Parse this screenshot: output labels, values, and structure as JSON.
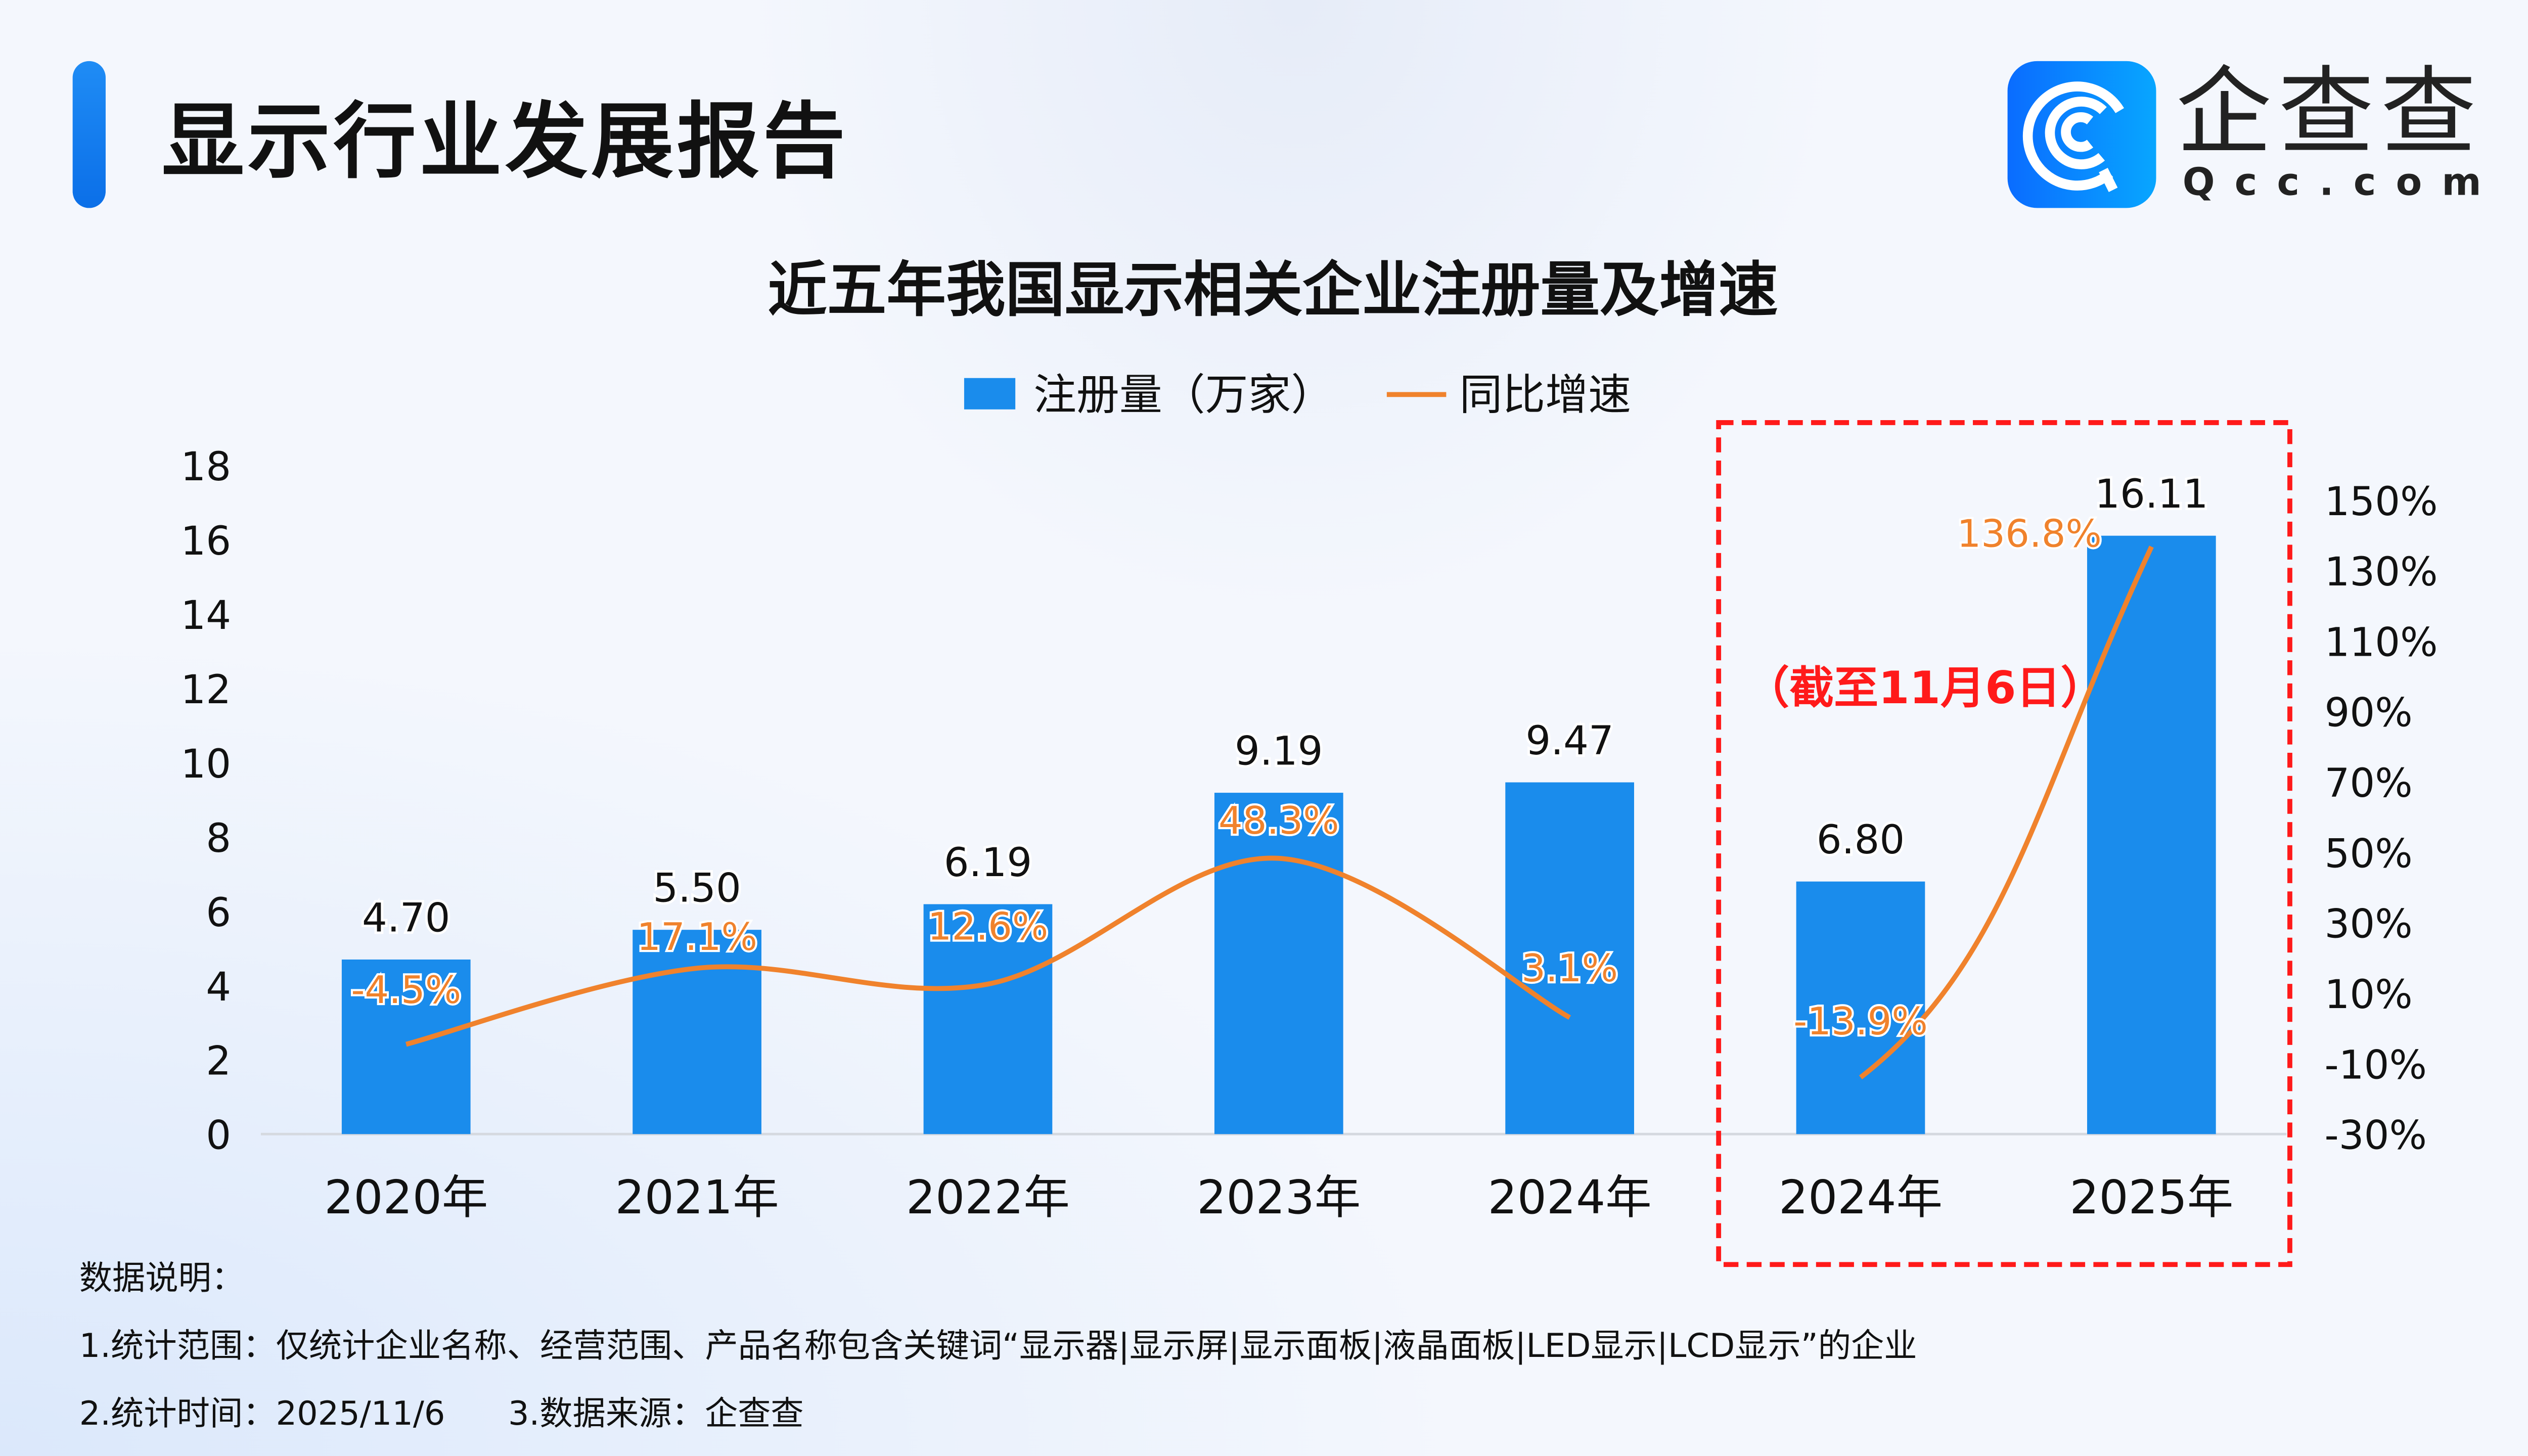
{
  "header": {
    "title": "显示行业发展报告",
    "logo_cn": "企查查",
    "logo_en": "Qcc.com",
    "brand_color": "#0a7dff"
  },
  "chart_data": {
    "type": "bar+line",
    "title": "近五年我国显示相关企业注册量及增速",
    "categories": [
      "2020年",
      "2021年",
      "2022年",
      "2023年",
      "2024年",
      "2024年",
      "2025年"
    ],
    "series": [
      {
        "name": "注册量（万家）",
        "type": "bar",
        "axis": "left",
        "color": "#1a8cec",
        "values": [
          4.7,
          5.5,
          6.19,
          9.19,
          9.47,
          6.8,
          16.11
        ],
        "labels": [
          "4.70",
          "5.50",
          "6.19",
          "9.19",
          "9.47",
          "6.80",
          "16.11"
        ]
      },
      {
        "name": "同比增速",
        "type": "line",
        "axis": "right",
        "color": "#f0822c",
        "values": [
          -4.5,
          17.1,
          12.6,
          48.3,
          3.1,
          -13.9,
          136.8
        ],
        "labels": [
          "-4.5%",
          "17.1%",
          "12.6%",
          "48.3%",
          "3.1%",
          "-13.9%",
          "136.8%"
        ]
      }
    ],
    "y_left": {
      "range": [
        0,
        18
      ],
      "ticks": [
        "0",
        "2",
        "4",
        "6",
        "8",
        "10",
        "12",
        "14",
        "16",
        "18"
      ]
    },
    "y_right": {
      "range": [
        -30,
        150
      ],
      "ticks": [
        "-30%",
        "-10%",
        "10%",
        "30%",
        "50%",
        "70%",
        "90%",
        "110%",
        "130%",
        "150%"
      ]
    },
    "legend_placement": "top",
    "highlight": {
      "label": "（截至11月6日）",
      "color": "#ff1a1a",
      "categories": [
        "2024年",
        "2025年"
      ]
    },
    "grid": false
  },
  "notes": {
    "heading": "数据说明：",
    "line1": "1.统计范围：仅统计企业名称、经营范围、产品名称包含关键词“显示器|显示屏|显示面板|液晶面板|LED显示|LCD显示”的企业",
    "line2": "2.统计时间：2025/11/6      3.数据来源：企查查"
  }
}
